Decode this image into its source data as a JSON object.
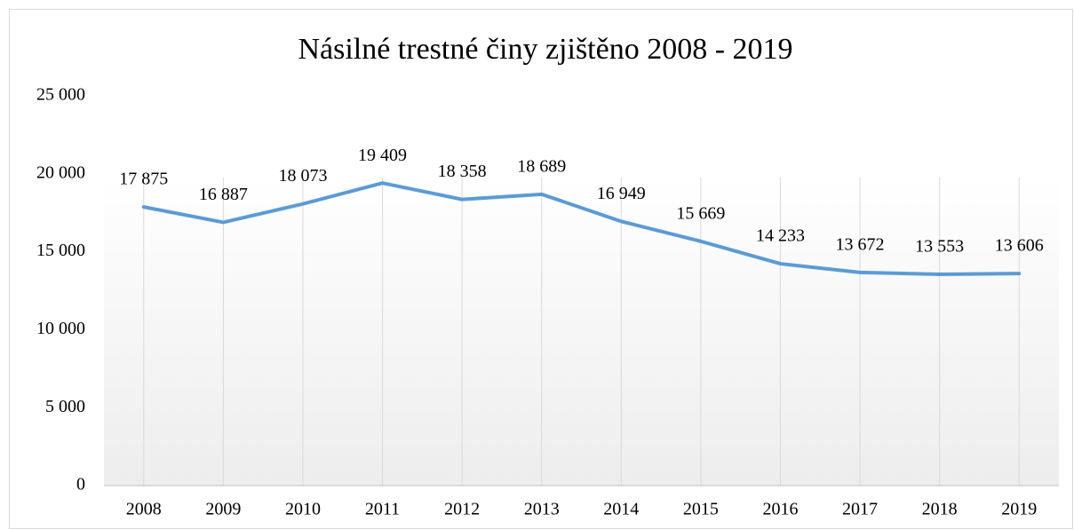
{
  "chart_data": {
    "type": "line",
    "title": "Násilné trestné činy zjištěno 2008 - 2019",
    "categories": [
      "2008",
      "2009",
      "2010",
      "2011",
      "2012",
      "2013",
      "2014",
      "2015",
      "2016",
      "2017",
      "2018",
      "2019"
    ],
    "series": [
      {
        "name": "Násilné trestné činy",
        "color": "#5b9bd5",
        "values": [
          17875,
          16887,
          18073,
          19409,
          18358,
          18689,
          16949,
          15669,
          14233,
          13672,
          13553,
          13606
        ],
        "value_labels": [
          "17 875",
          "16 887",
          "18 073",
          "19 409",
          "18 358",
          "18 689",
          "16 949",
          "15 669",
          "14 233",
          "13 672",
          "13 553",
          "13 606"
        ]
      }
    ],
    "ylim": [
      0,
      25000
    ],
    "yticks": [
      0,
      {
        "value": 5000,
        "label": "5 000"
      },
      {
        "value": 10000,
        "label": "10 000"
      },
      {
        "value": 15000,
        "label": "15 000"
      },
      {
        "value": 20000,
        "label": "20 000"
      },
      {
        "value": 25000,
        "label": "25 000"
      }
    ],
    "grid": "x"
  }
}
